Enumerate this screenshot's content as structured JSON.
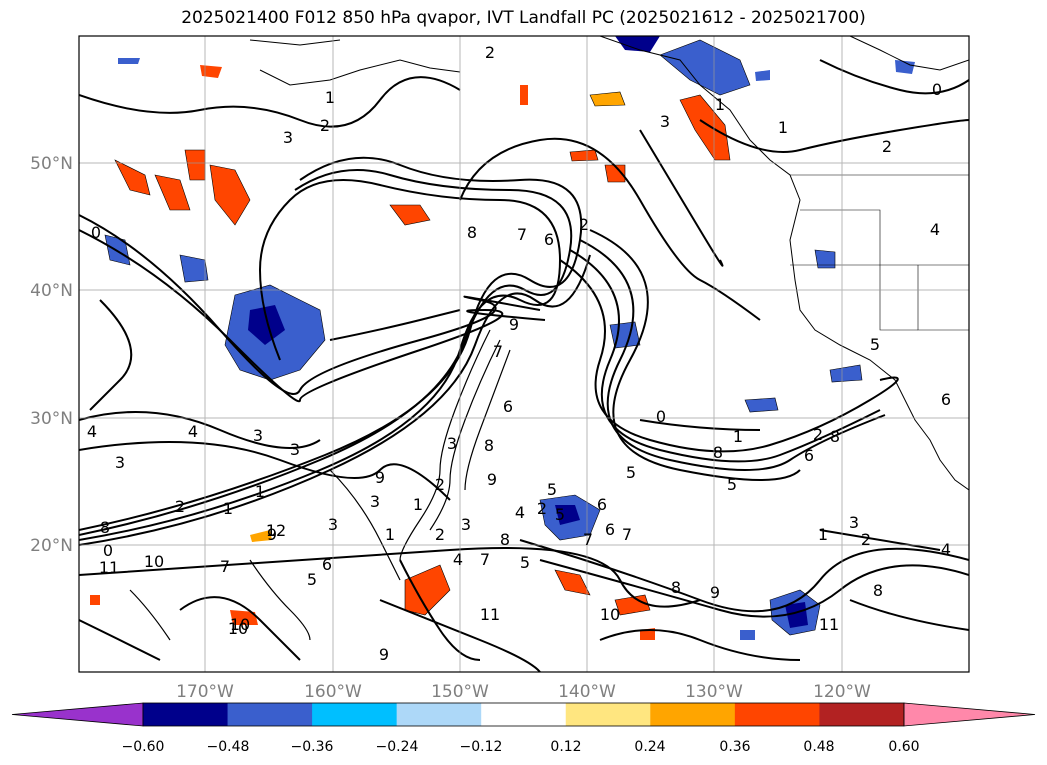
{
  "title": "2025021400 F012 850 hPa qvapor, IVT Landfall PC (2025021612 - 2025021700)",
  "map": {
    "lon_range": [
      -180,
      -110
    ],
    "lat_range": [
      10,
      60
    ],
    "lat_labels": [
      "50°N",
      "40°N",
      "30°N",
      "20°N"
    ],
    "lon_labels": [
      "170°W",
      "160°W",
      "150°W",
      "140°W",
      "130°W",
      "120°W"
    ],
    "grid": true,
    "contour_labels": [
      "2",
      "1",
      "0",
      "3",
      "2",
      "1",
      "3",
      "2",
      "1",
      "0",
      "8",
      "7",
      "6",
      "2",
      "0",
      "1",
      "2",
      "3",
      "4",
      "3",
      "4",
      "3",
      "3",
      "5",
      "6",
      "5",
      "6",
      "8",
      "9",
      "7",
      "8",
      "9",
      "9",
      "8",
      "7",
      "5",
      "2",
      "1",
      "3",
      "4",
      "1",
      "2",
      "1",
      "0",
      "11",
      "10",
      "12",
      "8",
      "7",
      "6",
      "5",
      "3",
      "1",
      "2",
      "3",
      "4",
      "5",
      "6",
      "7",
      "8",
      "9",
      "10",
      "11",
      "10",
      "9",
      "8",
      "7",
      "6",
      "5",
      "4",
      "3",
      "2",
      "1",
      "11",
      "8",
      "2",
      "6",
      "4",
      "5",
      "10",
      "9"
    ]
  },
  "colorbar": {
    "ticks": [
      "−0.60",
      "−0.48",
      "−0.36",
      "−0.24",
      "−0.12",
      "0.12",
      "0.24",
      "0.36",
      "0.48",
      "0.60"
    ],
    "colors": [
      "#9932cc",
      "#00008b",
      "#3a5fcd",
      "#00bfff",
      "#add8f8",
      "#ffffff",
      "#ffe680",
      "#ffa500",
      "#ff4500",
      "#b22222",
      "#ff88aa"
    ]
  }
}
